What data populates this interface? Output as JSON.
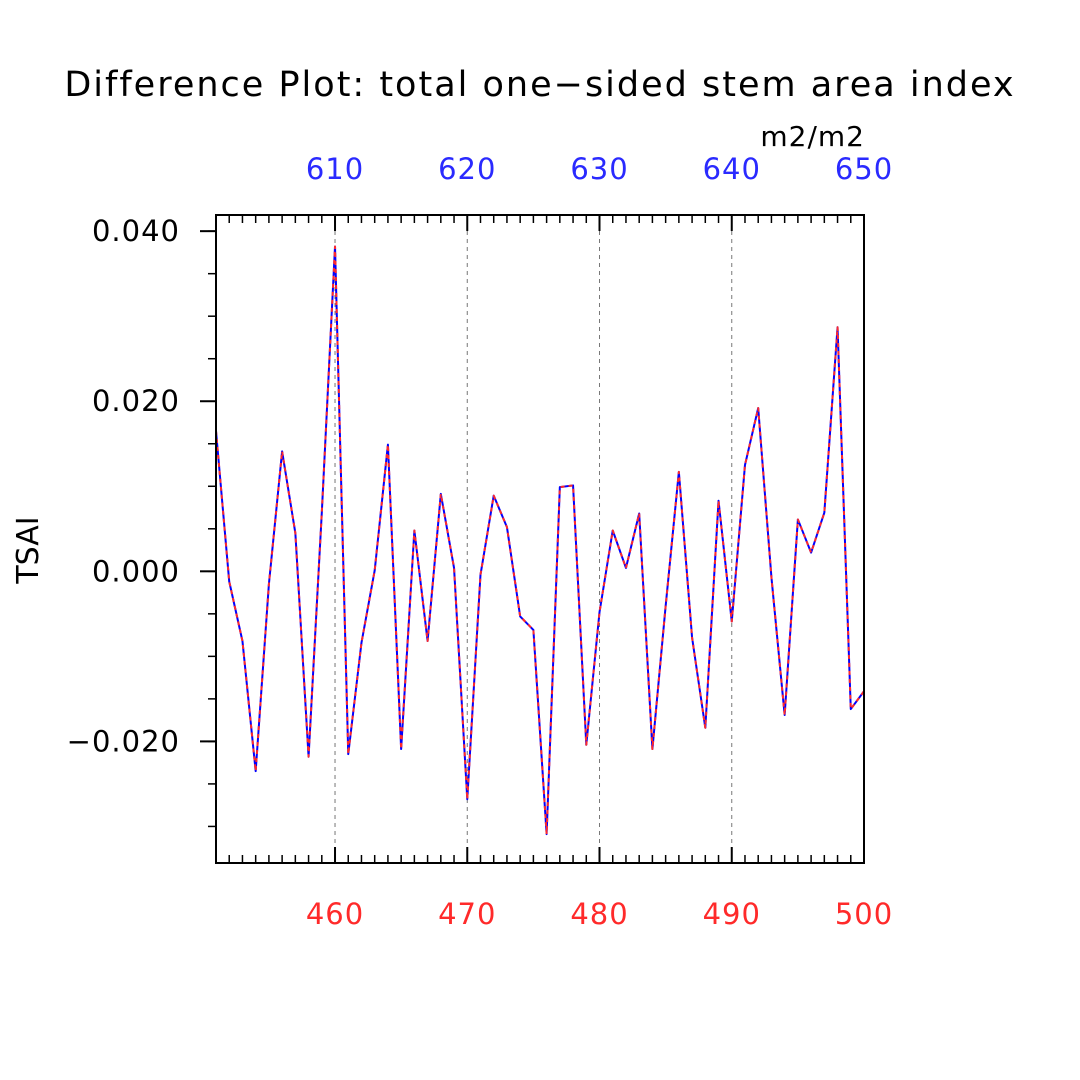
{
  "chart_data": {
    "type": "line",
    "title": "Difference Plot: total one−sided stem area index",
    "units": "m2/m2",
    "ylabel": "TSAI",
    "xlabel": "",
    "x": [
      451,
      452,
      453,
      454,
      455,
      456,
      457,
      458,
      459,
      460,
      461,
      462,
      463,
      464,
      465,
      466,
      467,
      468,
      469,
      470,
      471,
      472,
      473,
      474,
      475,
      476,
      477,
      478,
      479,
      480,
      481,
      482,
      483,
      484,
      485,
      486,
      487,
      488,
      489,
      490,
      491,
      492,
      493,
      494,
      495,
      496,
      497,
      498,
      499,
      500
    ],
    "xlim": [
      451,
      500
    ],
    "ylim": [
      -0.0343,
      0.0419
    ],
    "bottom_axis": {
      "color": "#ff2a2a",
      "ticks": [
        460,
        470,
        480,
        490,
        500
      ],
      "tick_labels": [
        "460",
        "470",
        "480",
        "490",
        "500"
      ]
    },
    "top_axis": {
      "color": "#2a2aff",
      "ticks": [
        610,
        620,
        630,
        640,
        650
      ],
      "tick_labels": [
        "610",
        "620",
        "630",
        "640",
        "650"
      ]
    },
    "yticks": [
      -0.02,
      0.0,
      0.02,
      0.04
    ],
    "ytick_labels": [
      "−0.020",
      "0.000",
      "0.020",
      "0.040"
    ],
    "grid": "vertical dashed at labeled x ticks",
    "series": [
      {
        "color": "#0000ff",
        "style": "solid",
        "values": [
          0.0165,
          -0.0012,
          -0.0082,
          -0.0235,
          -0.0015,
          0.0141,
          0.0045,
          -0.0218,
          0.0069,
          0.0382,
          -0.0215,
          -0.0084,
          0.0001,
          0.0149,
          -0.0209,
          0.0048,
          -0.0082,
          0.0091,
          0.0004,
          -0.0268,
          -0.0004,
          0.0089,
          0.0052,
          -0.0053,
          -0.0069,
          -0.0309,
          0.0099,
          0.0101,
          -0.0204,
          -0.0048,
          0.0048,
          0.0004,
          0.0068,
          -0.0209,
          -0.0041,
          0.0117,
          -0.0078,
          -0.0184,
          0.0083,
          -0.0059,
          0.0125,
          0.0192,
          -0.0007,
          -0.0169,
          0.0061,
          0.0022,
          0.0069,
          0.0287,
          -0.0162,
          -0.0141
        ]
      },
      {
        "color": "#ff2a2a",
        "style": "dashed",
        "values": [
          0.0165,
          -0.0012,
          -0.0082,
          -0.0235,
          -0.0015,
          0.0141,
          0.0045,
          -0.0218,
          0.0069,
          0.0382,
          -0.0215,
          -0.0084,
          0.0001,
          0.0149,
          -0.0209,
          0.0048,
          -0.0082,
          0.0091,
          0.0004,
          -0.0268,
          -0.0004,
          0.0089,
          0.0052,
          -0.0053,
          -0.0069,
          -0.0309,
          0.0099,
          0.0101,
          -0.0204,
          -0.0048,
          0.0048,
          0.0004,
          0.0068,
          -0.0209,
          -0.0041,
          0.0117,
          -0.0078,
          -0.0184,
          0.0083,
          -0.0059,
          0.0125,
          0.0192,
          -0.0007,
          -0.0169,
          0.0061,
          0.0022,
          0.0069,
          0.0287,
          -0.0162,
          -0.0141
        ]
      }
    ]
  }
}
